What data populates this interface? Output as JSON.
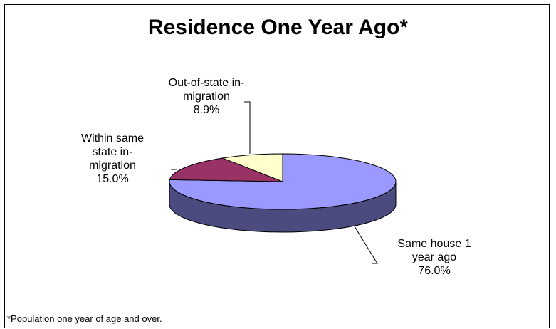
{
  "chart_data": {
    "type": "pie",
    "title": "Residence One Year Ago*",
    "slices": [
      {
        "name": "Same house 1 year ago",
        "label_lines": [
          "Same house 1",
          "year ago"
        ],
        "value": 76.0,
        "value_label": "76.0%",
        "color": "#9999ff",
        "side_color": "#4b4b7f"
      },
      {
        "name": "Within same state in-migration",
        "label_lines": [
          "Within same",
          "state in-",
          "migration"
        ],
        "value": 15.0,
        "value_label": "15.0%",
        "color": "#993366",
        "side_color": "#4c1933"
      },
      {
        "name": "Out-of-state in-migration",
        "label_lines": [
          "Out-of-state in-",
          "migration"
        ],
        "value": 8.9,
        "value_label": "8.9%",
        "color": "#ffffcc",
        "side_color": "#7f7f66"
      }
    ],
    "footnote": "*Population one year of age and over."
  }
}
